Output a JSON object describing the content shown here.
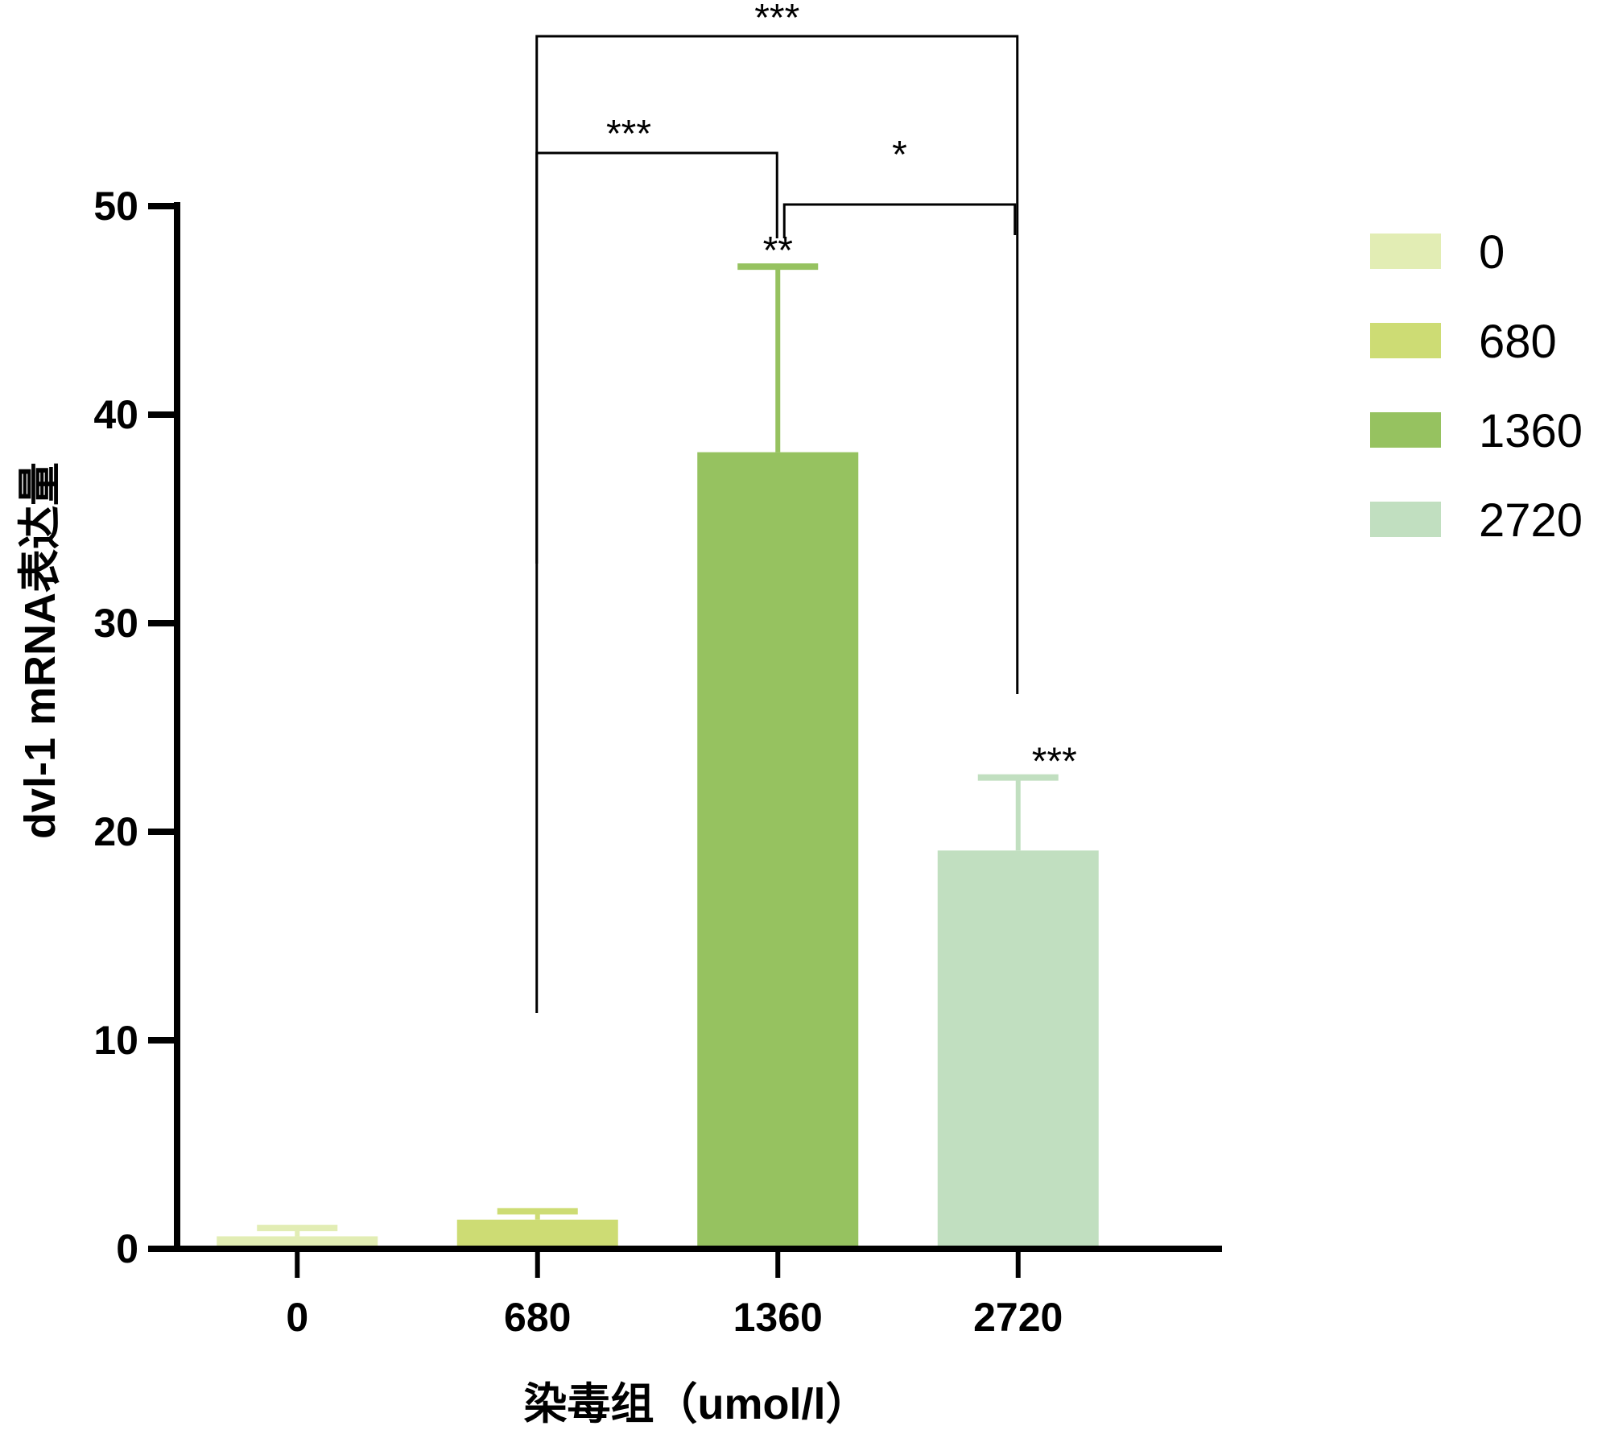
{
  "chart_data": {
    "type": "bar",
    "title": "",
    "xlabel": "染毒组（umol/l）",
    "ylabel": "dvl-1 mRNA表达量",
    "categories": [
      "0",
      "680",
      "1360",
      "2720"
    ],
    "values": [
      0.6,
      1.4,
      38.2,
      19.1
    ],
    "error_upper": [
      1.0,
      1.8,
      47.1,
      22.6
    ],
    "colors": [
      "#e2edb4",
      "#cddc74",
      "#96c260",
      "#c1dfc0"
    ],
    "ylim": [
      0,
      50
    ],
    "yticks": [
      0,
      10,
      20,
      30,
      40,
      50
    ],
    "grid": false,
    "legend": {
      "position": "right",
      "entries": [
        "0",
        "680",
        "1360",
        "2720"
      ]
    },
    "bar_annotations": [
      {
        "category": "1360",
        "text": "**"
      },
      {
        "category": "2720",
        "text": "***"
      }
    ],
    "comparisons": [
      {
        "from": "680",
        "to": "2720",
        "text": "***"
      },
      {
        "from": "680",
        "to": "1360",
        "text": "***"
      },
      {
        "from": "1360",
        "to": "2720",
        "text": "*"
      }
    ]
  }
}
